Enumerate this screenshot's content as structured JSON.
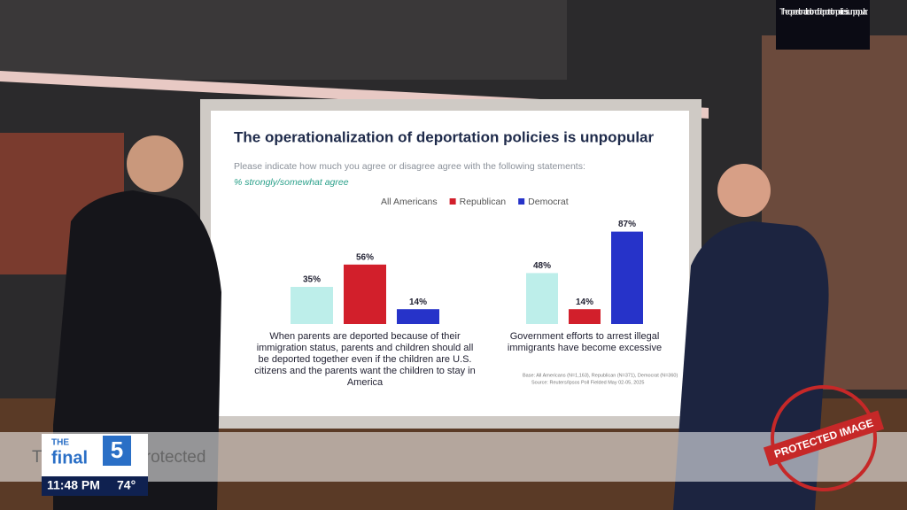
{
  "monitor_caption": "The operationalization of deportation policies is unpopular",
  "chart_data": {
    "type": "bar",
    "title": "The operationalization of deportation policies is unpopular",
    "subtitle": "Please indicate how much you agree or disagree agree with the following statements:",
    "subtitle_note": "% strongly/somewhat agree",
    "categories": [
      "When parents are deported because of their immigration status, parents and children should all be deported together even if the children are U.S. citizens and the parents want the children to stay in America",
      "Government efforts to arrest illegal immigrants have become excessive"
    ],
    "series": [
      {
        "name": "All Americans",
        "color": "#bdeeea",
        "values": [
          35,
          48
        ],
        "value_labels": [
          "35%",
          "48%"
        ]
      },
      {
        "name": "Republican",
        "color": "#d21f2b",
        "values": [
          56,
          14
        ],
        "value_labels": [
          "56%",
          "14%"
        ]
      },
      {
        "name": "Democrat",
        "color": "#2633c9",
        "values": [
          14,
          87
        ],
        "value_labels": [
          "14%",
          "87%"
        ]
      }
    ],
    "notes": [
      "Base: All Americans (N=1,163), Republican (N=371), Democrat (N=360)",
      "Source: Reuters/Ipsos Poll Fielded May 02-05, 2025"
    ]
  },
  "lower_third": {
    "brand_top": "THE",
    "brand_main": "final",
    "brand_number": "5",
    "time": "11:48 PM",
    "temperature": "74°"
  },
  "watermark": {
    "text": "This image is protected",
    "stamp": "PROTECTED IMAGE"
  }
}
